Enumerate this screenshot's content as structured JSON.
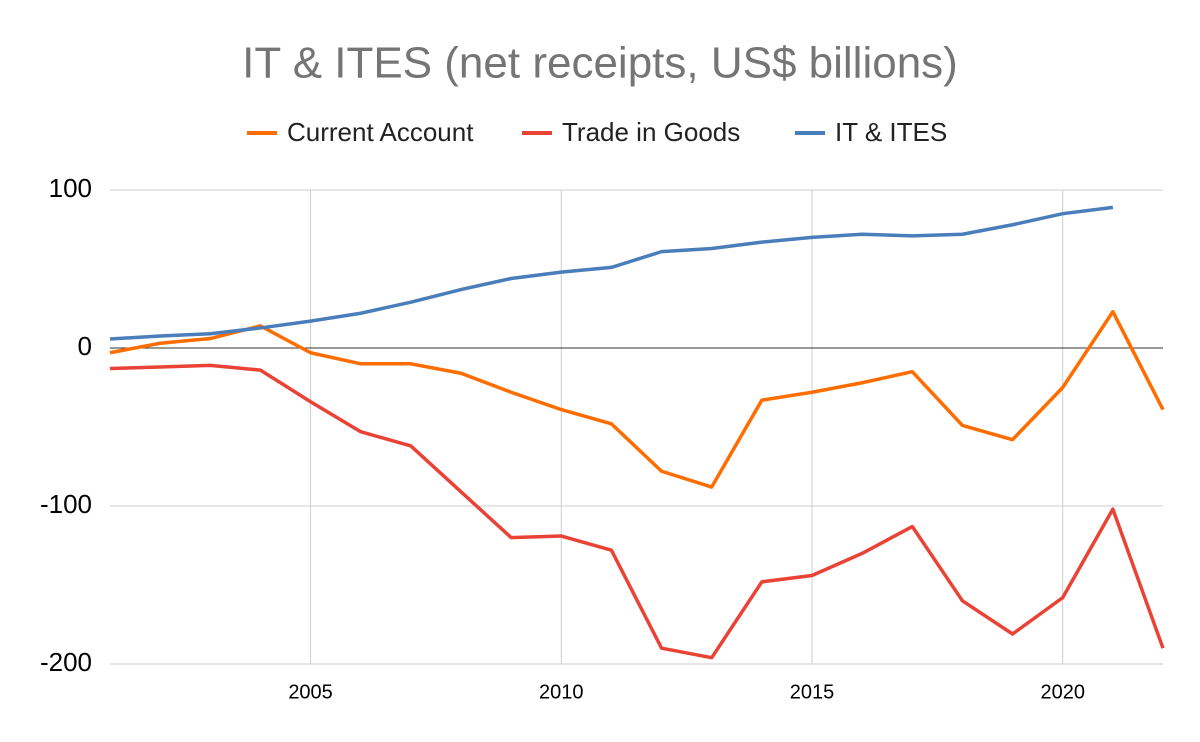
{
  "chart_data": {
    "type": "line",
    "title": "IT & ITES (net receipts, US$ billions)",
    "x": [
      2001,
      2002,
      2003,
      2004,
      2005,
      2006,
      2007,
      2008,
      2009,
      2010,
      2011,
      2012,
      2013,
      2014,
      2015,
      2016,
      2017,
      2018,
      2019,
      2020,
      2021,
      2022
    ],
    "series": [
      {
        "name": "Current Account",
        "color": "#ff6d01",
        "values": [
          -3,
          3,
          6,
          14,
          -3,
          -10,
          -10,
          -16,
          -28,
          -39,
          -48,
          -78,
          -88,
          -33,
          -28,
          -22,
          -15,
          -49,
          -58,
          -25,
          23,
          -39
        ]
      },
      {
        "name": "Trade in Goods",
        "color": "#ea4335",
        "values": [
          -13,
          -12,
          -11,
          -14,
          -34,
          -53,
          -62,
          -91,
          -120,
          -119,
          -128,
          -190,
          -196,
          -148,
          -144,
          -130,
          -113,
          -160,
          -181,
          -158,
          -102,
          -190
        ]
      },
      {
        "name": "IT & ITES",
        "color": "#4a7ebb",
        "values": [
          5.7,
          7.6,
          9,
          12.7,
          17,
          22,
          29,
          37,
          44,
          48,
          51,
          61,
          63,
          67,
          70,
          72,
          71,
          72,
          78,
          85,
          89,
          null
        ]
      }
    ],
    "xlim": [
      2001,
      2022
    ],
    "xticks": [
      2005,
      2010,
      2015,
      2020
    ],
    "ylim": [
      -200,
      100
    ],
    "yticks": [
      -200,
      -100,
      0,
      100
    ],
    "grid": true,
    "legend": "top"
  }
}
